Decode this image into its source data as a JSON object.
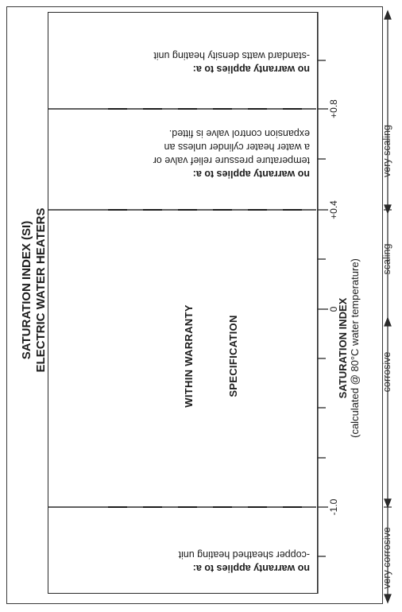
{
  "title": {
    "line1": "SATURATION INDEX (SI)",
    "line2": "ELECTRIC WATER HEATERS"
  },
  "center_label": {
    "line1": "WITHIN WARRANTY",
    "line2": "SPECIFICATION"
  },
  "notes": [
    {
      "heading": "no warranty applies to a:",
      "lines": [
        "-standard watts density heating unit"
      ]
    },
    {
      "heading": "no warranty applies to a:",
      "lines": [
        "temperature pressure relief valve or",
        "a water heater cylinder unless an",
        "expansion control valve is fitted."
      ]
    },
    {
      "heading": "no warranty applies to a:",
      "lines": [
        "-copper sheathed heating unit"
      ]
    }
  ],
  "axis": {
    "title": "SATURATION INDEX",
    "subtitle": "(calculated @ 80°C water temperature)",
    "ticks": [
      "+0.8",
      "+0.4",
      "0",
      "-1.0"
    ]
  },
  "regions": [
    "very scaling",
    "scaling",
    "corrosive",
    "very corrosive"
  ]
}
